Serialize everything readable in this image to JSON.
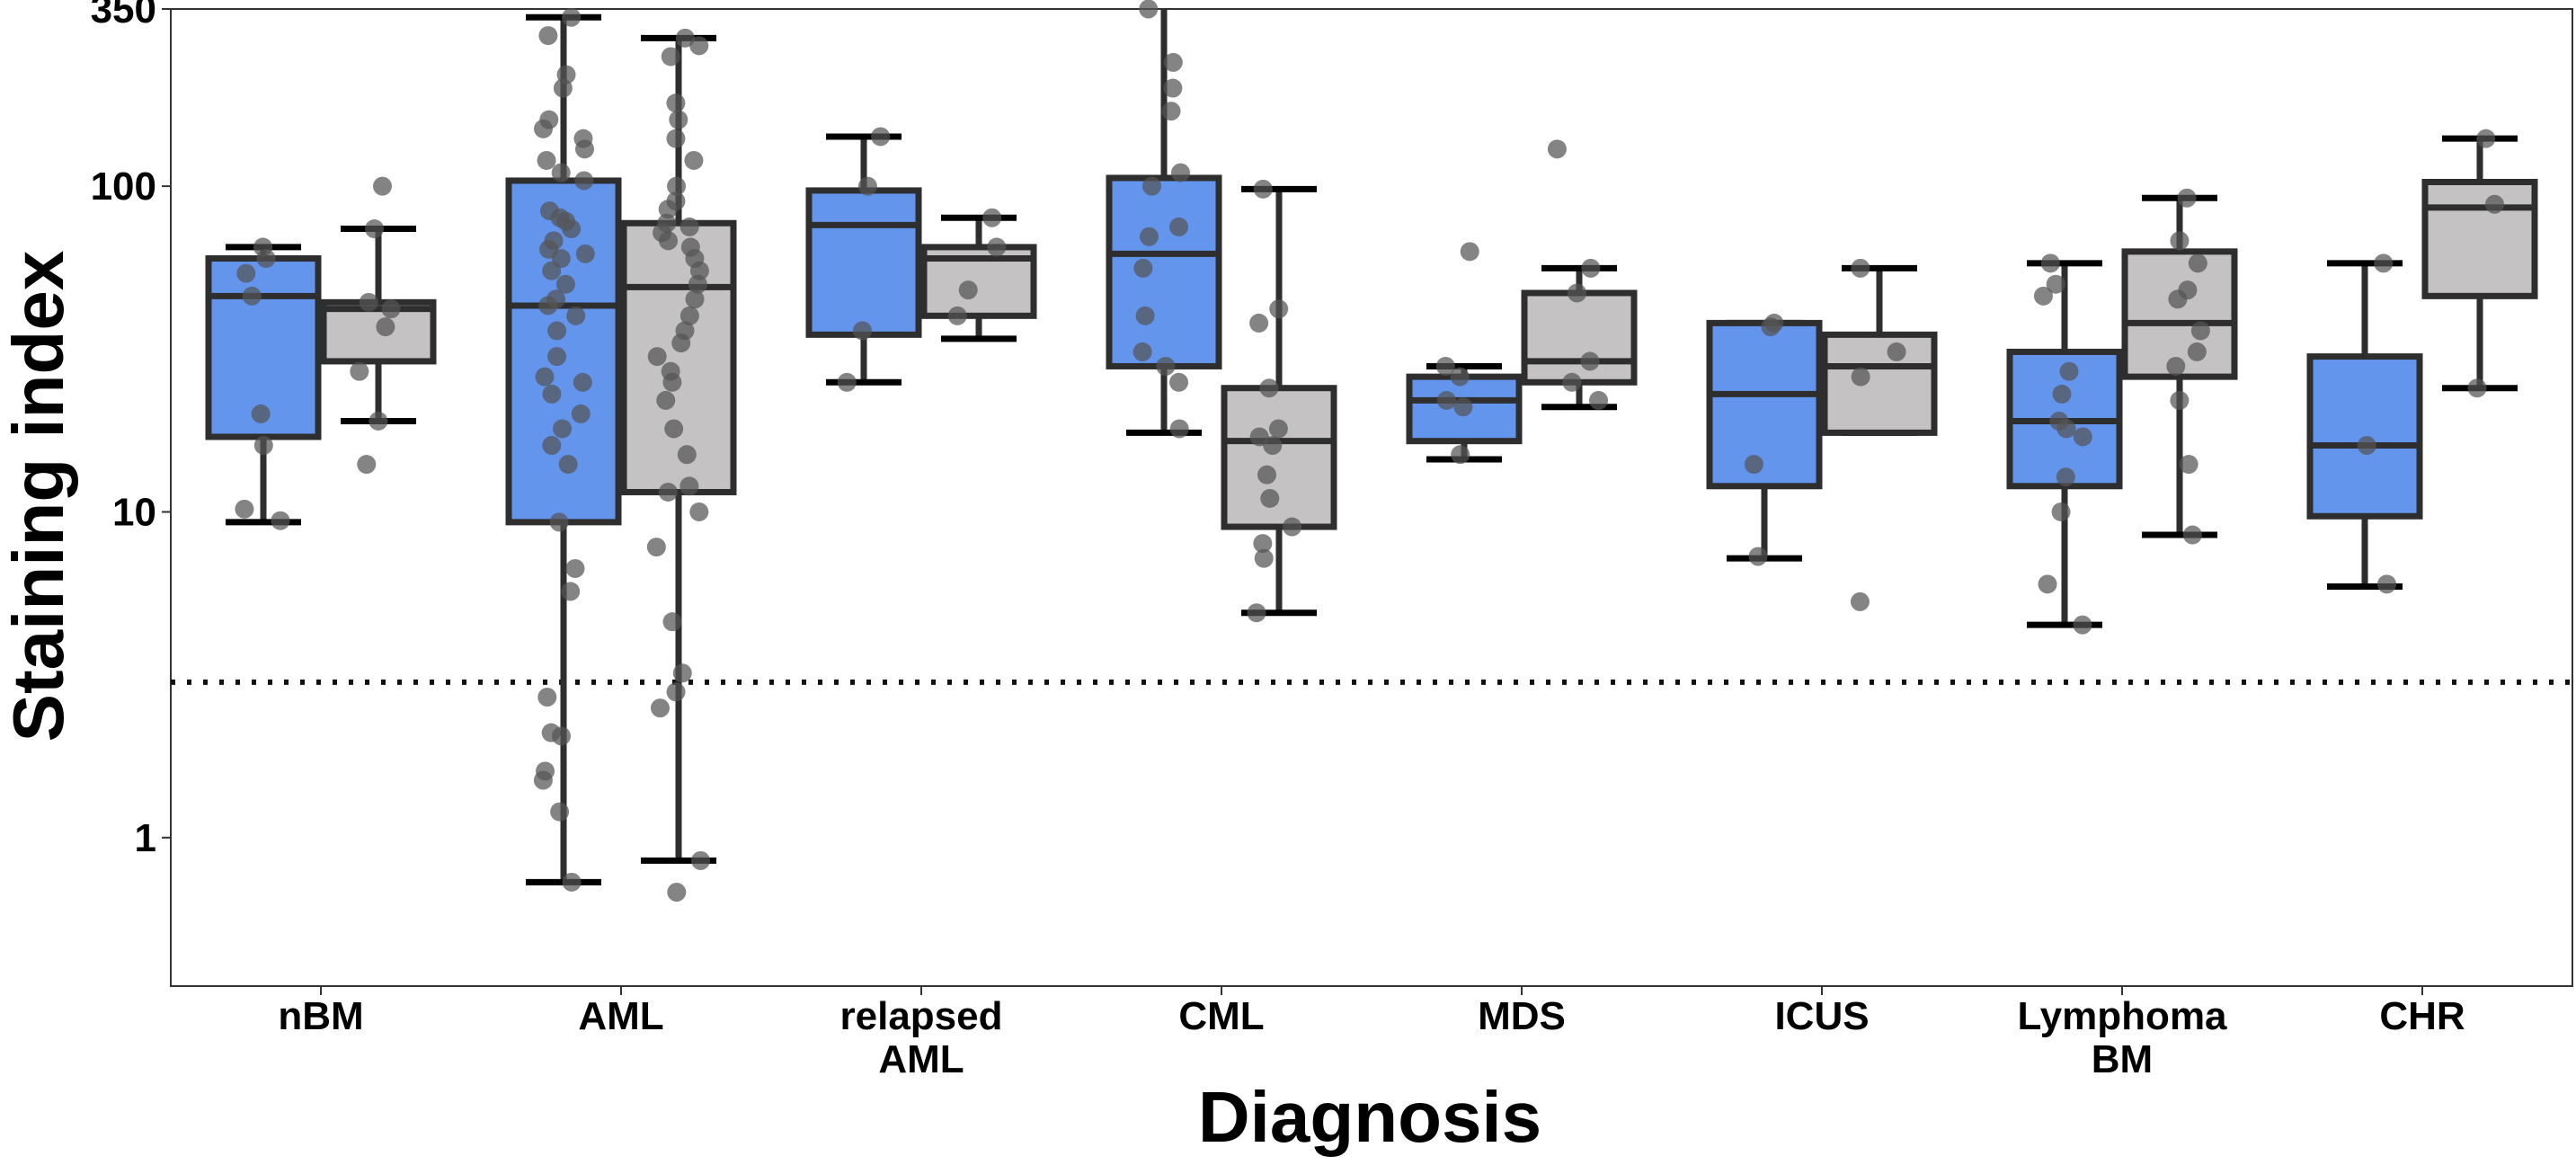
{
  "chart_data": {
    "type": "box",
    "title": "",
    "xlabel": "Diagnosis",
    "ylabel": "Staining index",
    "y_scale": "log10",
    "ylim": [
      0.35,
      350
    ],
    "y_ticks": [
      {
        "value": 1,
        "label": "1"
      },
      {
        "value": 10,
        "label": "10"
      },
      {
        "value": 100,
        "label": "100"
      },
      {
        "value": 350,
        "label": "350"
      }
    ],
    "reference_line": {
      "value": 3,
      "style": "dotted"
    },
    "grid": false,
    "legend": "none",
    "colors": {
      "blue": "#6495ED",
      "grey": "#C4C2C3",
      "outline": "#2E2E2E",
      "points": "#555555"
    },
    "categories": [
      {
        "label_lines": [
          "nBM"
        ]
      },
      {
        "label_lines": [
          "AML"
        ]
      },
      {
        "label_lines": [
          "relapsed",
          "AML"
        ]
      },
      {
        "label_lines": [
          "CML"
        ]
      },
      {
        "label_lines": [
          "MDS"
        ]
      },
      {
        "label_lines": [
          "ICUS"
        ]
      },
      {
        "label_lines": [
          "Lymphoma",
          "BM"
        ]
      },
      {
        "label_lines": [
          "CHR"
        ]
      }
    ],
    "boxes": [
      {
        "category": 0,
        "color": "blue",
        "whisker_low": 9.3,
        "q1": 17,
        "median": 46,
        "q3": 60,
        "whisker_high": 65,
        "points": [
          65,
          60,
          54,
          46,
          20,
          16,
          10.2,
          9.4
        ]
      },
      {
        "category": 0,
        "color": "grey",
        "whisker_low": 19,
        "q1": 29,
        "median": 42,
        "q3": 44,
        "whisker_high": 74,
        "points": [
          100,
          74,
          44,
          42,
          37,
          27,
          19,
          14
        ]
      },
      {
        "category": 1,
        "color": "blue",
        "whisker_low": 0.73,
        "q1": 9.3,
        "median": 43,
        "q3": 104,
        "whisker_high": 330,
        "points": [
          330,
          290,
          220,
          200,
          160,
          150,
          140,
          130,
          120,
          110,
          104,
          84,
          80,
          78,
          74,
          68,
          64,
          62,
          60,
          55,
          50,
          45,
          43,
          40,
          36,
          30,
          26,
          25,
          23,
          20,
          18,
          16,
          14,
          9.3,
          6.7,
          5.7,
          2.7,
          2.1,
          2.05,
          1.6,
          1.5,
          1.2,
          0.73
        ]
      },
      {
        "category": 1,
        "color": "grey",
        "whisker_low": 0.85,
        "q1": 11.5,
        "median": 49,
        "q3": 77,
        "whisker_high": 285,
        "points": [
          285,
          270,
          250,
          180,
          160,
          140,
          120,
          100,
          90,
          85,
          77,
          75,
          72,
          68,
          65,
          60,
          55,
          50,
          45,
          40,
          36,
          33,
          30,
          27,
          25,
          22,
          18,
          15,
          12,
          11.5,
          10,
          7.8,
          4.6,
          3.2,
          2.8,
          2.5,
          0.85,
          0.68
        ]
      },
      {
        "category": 2,
        "color": "blue",
        "whisker_low": 25,
        "q1": 35,
        "median": 76,
        "q3": 97,
        "whisker_high": 142,
        "points": [
          142,
          100,
          36,
          25
        ]
      },
      {
        "category": 2,
        "color": "grey",
        "whisker_low": 34,
        "q1": 40,
        "median": 60,
        "q3": 65,
        "whisker_high": 80,
        "points": [
          80,
          65,
          48,
          40
        ]
      },
      {
        "category": 3,
        "color": "blue",
        "whisker_low": 17.5,
        "q1": 28,
        "median": 62,
        "q3": 106,
        "whisker_high": 350,
        "points": [
          350,
          240,
          200,
          170,
          110,
          100,
          75,
          70,
          56,
          40,
          31,
          28,
          25,
          18
        ]
      },
      {
        "category": 3,
        "color": "grey",
        "whisker_low": 4.9,
        "q1": 9,
        "median": 16.5,
        "q3": 24,
        "whisker_high": 98,
        "points": [
          98,
          42,
          38,
          24,
          18,
          17,
          16,
          13,
          11,
          9,
          8,
          7.2,
          4.9
        ]
      },
      {
        "category": 4,
        "color": "blue",
        "whisker_low": 14.5,
        "q1": 16.5,
        "median": 22,
        "q3": 26,
        "whisker_high": 28,
        "points": [
          63,
          28,
          26,
          22,
          21,
          15
        ]
      },
      {
        "category": 4,
        "color": "grey",
        "whisker_low": 21,
        "q1": 25,
        "median": 29,
        "q3": 47,
        "whisker_high": 56,
        "points": [
          130,
          56,
          47,
          29,
          25,
          22
        ]
      },
      {
        "category": 5,
        "color": "blue",
        "whisker_low": 7.2,
        "q1": 12,
        "median": 23,
        "q3": 38,
        "whisker_high": 38,
        "points": [
          38,
          37,
          14,
          7.3
        ]
      },
      {
        "category": 5,
        "color": "grey",
        "whisker_low": 17.5,
        "q1": 17.5,
        "median": 28,
        "q3": 35,
        "whisker_high": 56,
        "points": [
          56,
          31,
          26,
          5.3
        ]
      },
      {
        "category": 6,
        "color": "blue",
        "whisker_low": 4.5,
        "q1": 12,
        "median": 19,
        "q3": 31,
        "whisker_high": 58,
        "points": [
          58,
          50,
          46,
          27,
          23,
          19,
          18,
          17,
          12.8,
          10,
          6,
          4.5
        ]
      },
      {
        "category": 6,
        "color": "grey",
        "whisker_low": 8.5,
        "q1": 26,
        "median": 38,
        "q3": 63,
        "whisker_high": 92,
        "points": [
          92,
          68,
          58,
          48,
          45,
          36,
          31,
          28,
          22,
          14,
          8.5
        ]
      },
      {
        "category": 7,
        "color": "blue",
        "whisker_low": 5.9,
        "q1": 9.7,
        "median": 16,
        "q3": 30,
        "whisker_high": 58,
        "points": [
          58,
          16,
          6
        ]
      },
      {
        "category": 7,
        "color": "grey",
        "whisker_low": 24,
        "q1": 46,
        "median": 86,
        "q3": 103,
        "whisker_high": 140,
        "points": [
          140,
          88,
          24
        ]
      }
    ]
  }
}
